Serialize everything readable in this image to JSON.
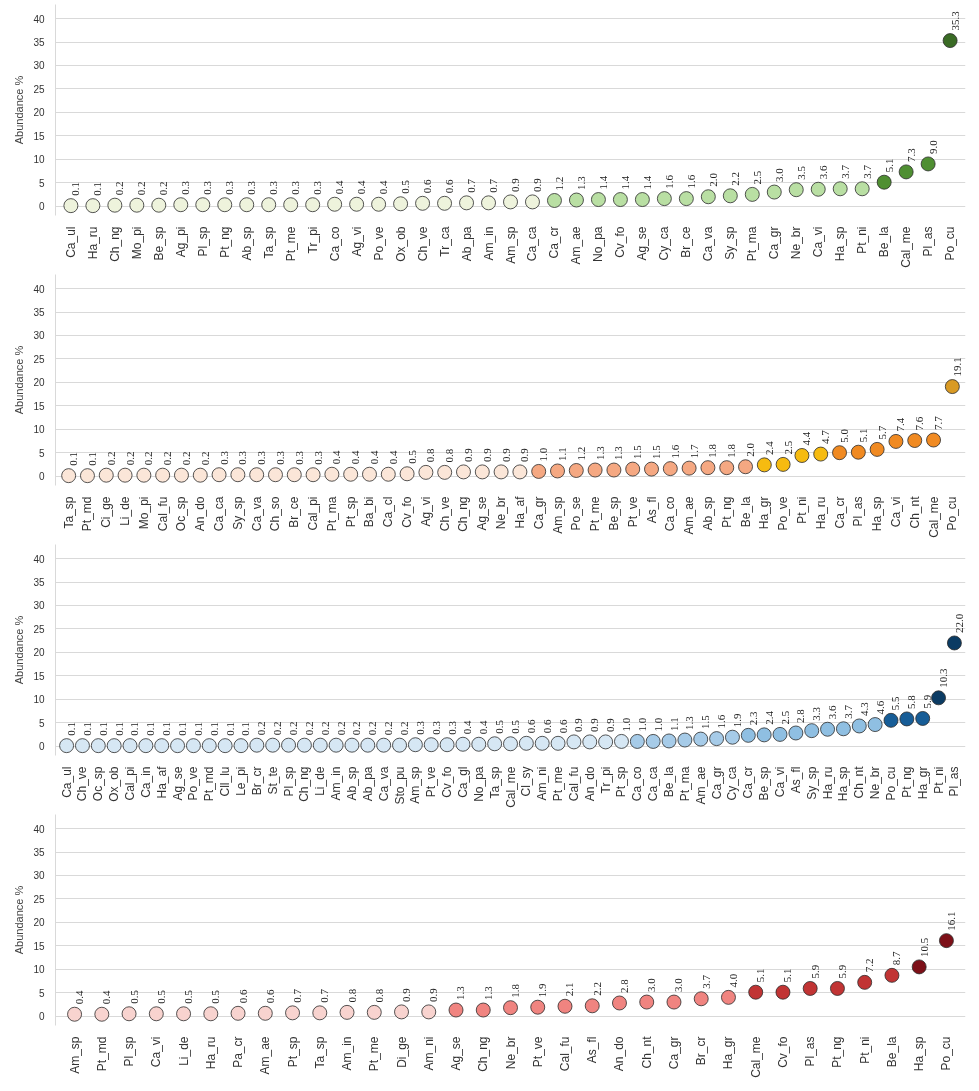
{
  "chart_data": [
    {
      "type": "scatter",
      "ylabel": "Abundance %",
      "ylim": [
        -2,
        43
      ],
      "yticks": [
        0,
        5,
        10,
        15,
        20,
        25,
        30,
        35,
        40
      ],
      "grid": "y",
      "marker": "circle",
      "categories": [
        "Ca_ul",
        "Ha_ru",
        "Ch_ng",
        "Mo_pi",
        "Be_sp",
        "Ag_pi",
        "Pl_sp",
        "Pt_ng",
        "Ab_sp",
        "Ta_sp",
        "Pt_me",
        "Tr_pi",
        "Ca_co",
        "Ag_vi",
        "Po_ve",
        "Ox_ob",
        "Ch_ve",
        "Tr_ca",
        "Ab_pa",
        "Am_in",
        "Am_sp",
        "Ca_ca",
        "Ca_cr",
        "Am_ae",
        "No_pa",
        "Cv_fo",
        "Ag_se",
        "Cy_ca",
        "Br_ce",
        "Ca_va",
        "Sy_sp",
        "Pt_ma",
        "Ca_gr",
        "Ne_br",
        "Ca_vi",
        "Ha_sp",
        "Pt_ni",
        "Be_la",
        "Cal_me",
        "Pl_as",
        "Po_cu"
      ],
      "values": [
        0.1,
        0.1,
        0.2,
        0.2,
        0.2,
        0.3,
        0.3,
        0.3,
        0.3,
        0.3,
        0.3,
        0.3,
        0.4,
        0.4,
        0.4,
        0.5,
        0.6,
        0.6,
        0.7,
        0.7,
        0.9,
        0.9,
        1.2,
        1.3,
        1.4,
        1.4,
        1.4,
        1.6,
        1.6,
        2.0,
        2.2,
        2.5,
        3.0,
        3.5,
        3.6,
        3.7,
        3.7,
        5.1,
        7.3,
        9.0,
        35.3
      ],
      "value_labels": [
        "0.1",
        "0.1",
        "0.2",
        "0.2",
        "0.2",
        "0.3",
        "0.3",
        "0.3",
        "0.3",
        "0.3",
        "0.3",
        "0.3",
        "0.4",
        "0.4",
        "0.4",
        "0.5",
        "0.6",
        "0.6",
        "0.7",
        "0.7",
        "0.9",
        "0.9",
        "1.2",
        "1.3",
        "1.4",
        "1.4",
        "1.4",
        "1.6",
        "1.6",
        "2.0",
        "2.2",
        "2.5",
        "3.0",
        "3.5",
        "3.6",
        "3.7",
        "3.7",
        "5.1",
        "7.3",
        "9.0",
        "35.3"
      ],
      "colors": [
        "#eef3dc",
        "#eef3dc",
        "#eef3dc",
        "#eef3dc",
        "#eef3dc",
        "#eef3dc",
        "#eef3dc",
        "#eef3dc",
        "#eef3dc",
        "#eef3dc",
        "#eef3dc",
        "#eef3dc",
        "#eef3dc",
        "#eef3dc",
        "#eef3dc",
        "#eef3dc",
        "#eef3dc",
        "#eef3dc",
        "#eef3dc",
        "#eef3dc",
        "#eef3dc",
        "#eef3dc",
        "#b9dfa3",
        "#b9dfa3",
        "#b9dfa3",
        "#b9dfa3",
        "#b9dfa3",
        "#b9dfa3",
        "#b9dfa3",
        "#b9dfa3",
        "#b9dfa3",
        "#b9dfa3",
        "#b9dfa3",
        "#b9dfa3",
        "#b9dfa3",
        "#b9dfa3",
        "#b9dfa3",
        "#4f8f32",
        "#4f8f32",
        "#4f8f32",
        "#3a6b25"
      ]
    },
    {
      "type": "scatter",
      "ylabel": "Abundance %",
      "ylim": [
        -2,
        43
      ],
      "yticks": [
        0,
        5,
        10,
        15,
        20,
        25,
        30,
        35,
        40
      ],
      "grid": "y",
      "marker": "circle",
      "categories": [
        "Ta_sp",
        "Pt_md",
        "Ci_ge",
        "Li_de",
        "Mo_pi",
        "Cal_fu",
        "Oc_sp",
        "An_do",
        "Ca_ca",
        "Sy_sp",
        "Ca_va",
        "Ch_so",
        "Br_ce",
        "Cal_pi",
        "Pt_ma",
        "Pt_sp",
        "Ba_bi",
        "Ca_cl",
        "Cv_fo",
        "Ag_vi",
        "Ch_ve",
        "Ch_ng",
        "Ag_se",
        "Ne_br",
        "Ha_af",
        "Ca_gr",
        "Am_sp",
        "Po_se",
        "Pt_me",
        "Be_sp",
        "Pt_ve",
        "As_fl",
        "Ca_co",
        "Am_ae",
        "Ab_sp",
        "Pt_ng",
        "Be_la",
        "Ha_gr",
        "Po_ve",
        "Pt_ni",
        "Ha_ru",
        "Ca_cr",
        "Pl_as",
        "Ha_sp",
        "Ca_vi",
        "Ch_nt",
        "Cal_me",
        "Po_cu"
      ],
      "values": [
        0.1,
        0.1,
        0.2,
        0.2,
        0.2,
        0.2,
        0.2,
        0.2,
        0.3,
        0.3,
        0.3,
        0.3,
        0.3,
        0.3,
        0.4,
        0.4,
        0.4,
        0.4,
        0.5,
        0.8,
        0.8,
        0.9,
        0.9,
        0.9,
        0.9,
        1.0,
        1.1,
        1.2,
        1.3,
        1.3,
        1.5,
        1.5,
        1.6,
        1.7,
        1.8,
        1.8,
        2.0,
        2.4,
        2.5,
        4.4,
        4.7,
        5.0,
        5.1,
        5.7,
        7.4,
        7.6,
        7.7,
        19.1
      ],
      "value_labels": [
        "0.1",
        "0.1",
        "0.2",
        "0.2",
        "0.2",
        "0.2",
        "0.2",
        "0.2",
        "0.3",
        "0.3",
        "0.3",
        "0.3",
        "0.3",
        "0.3",
        "0.4",
        "0.4",
        "0.4",
        "0.4",
        "0.5",
        "0.8",
        "0.8",
        "0.9",
        "0.9",
        "0.9",
        "0.9",
        "1.0",
        "1.1",
        "1.2",
        "1.3",
        "1.3",
        "1.5",
        "1.5",
        "1.6",
        "1.7",
        "1.8",
        "1.8",
        "2.0",
        "2.4",
        "2.5",
        "4.4",
        "4.7",
        "5.0",
        "5.1",
        "5.7",
        "7.4",
        "7.6",
        "7.7",
        "19.1"
      ],
      "colors": [
        "#fbe6d8",
        "#fbe6d8",
        "#fbe6d8",
        "#fbe6d8",
        "#fbe6d8",
        "#fbe6d8",
        "#fbe6d8",
        "#fbe6d8",
        "#fbe6d8",
        "#fbe6d8",
        "#fbe6d8",
        "#fbe6d8",
        "#fbe6d8",
        "#fbe6d8",
        "#fbe6d8",
        "#fbe6d8",
        "#fbe6d8",
        "#fbe6d8",
        "#fbe6d8",
        "#fbe6d8",
        "#fbe6d8",
        "#fbe6d8",
        "#fbe6d8",
        "#fbe6d8",
        "#fbe6d8",
        "#f5a882",
        "#f5a882",
        "#f5a882",
        "#f5a882",
        "#f5a882",
        "#f5a882",
        "#f5a882",
        "#f5a882",
        "#f5a882",
        "#f5a882",
        "#f5a882",
        "#f5a882",
        "#f6bb10",
        "#f6bb10",
        "#f6bb10",
        "#f6bb10",
        "#f08a22",
        "#f08a22",
        "#f08a22",
        "#f08a22",
        "#f08a22",
        "#f08a22",
        "#d99a24"
      ]
    },
    {
      "type": "scatter",
      "ylabel": "Abundance %",
      "ylim": [
        -2,
        43
      ],
      "yticks": [
        0,
        5,
        10,
        15,
        20,
        25,
        30,
        35,
        40
      ],
      "grid": "y",
      "marker": "circle",
      "categories": [
        "Ca_ul",
        "Ch_ve",
        "Oc_sp",
        "Ox_ob",
        "Cal_pi",
        "Ca_in",
        "Ha_af",
        "Ag_se",
        "Po_ve",
        "Pt_md",
        "Cll_lu",
        "Le_pi",
        "Br_cr",
        "St_te",
        "Pl_sp",
        "Ch_ng",
        "Li_de",
        "Am_in",
        "Ab_sp",
        "Ab_pa",
        "Ca_va",
        "Sto_pu",
        "Am_sp",
        "Pt_ve",
        "Cv_fo",
        "Ca_gl",
        "No_pa",
        "Ta_sp",
        "Cal_me",
        "Cl_sy",
        "Am_ni",
        "Pt_me",
        "Cal_fu",
        "An_do",
        "Tr_pi",
        "Pt_sp",
        "Ca_co",
        "Ca_ca",
        "Be_la",
        "Pt_ma",
        "Am_ae",
        "Ca_gr",
        "Cy_ca",
        "Ca_cr",
        "Be_sp",
        "Ca_vi",
        "As_fl",
        "Sy_sp",
        "Ha_ru",
        "Ha_sp",
        "Ch_nt",
        "Ne_br",
        "Po_cu",
        "Pt_ng",
        "Ha_gr",
        "Pt_ni",
        "Pl_as"
      ],
      "values": [
        0.1,
        0.1,
        0.1,
        0.1,
        0.1,
        0.1,
        0.1,
        0.1,
        0.1,
        0.1,
        0.1,
        0.1,
        0.2,
        0.2,
        0.2,
        0.2,
        0.2,
        0.2,
        0.2,
        0.2,
        0.2,
        0.2,
        0.3,
        0.3,
        0.3,
        0.4,
        0.4,
        0.5,
        0.5,
        0.6,
        0.6,
        0.6,
        0.9,
        0.9,
        0.9,
        1.0,
        1.0,
        1.0,
        1.1,
        1.3,
        1.5,
        1.6,
        1.9,
        2.3,
        2.4,
        2.5,
        2.8,
        3.3,
        3.6,
        3.7,
        4.3,
        4.6,
        5.5,
        5.8,
        5.9,
        10.3,
        22.0
      ],
      "value_labels": [
        "0.1",
        "0.1",
        "0.1",
        "0.1",
        "0.1",
        "0.1",
        "0.1",
        "0.1",
        "0.1",
        "0.1",
        "0.1",
        "0.1",
        "0.2",
        "0.2",
        "0.2",
        "0.2",
        "0.2",
        "0.2",
        "0.2",
        "0.2",
        "0.2",
        "0.2",
        "0.3",
        "0.3",
        "0.3",
        "0.4",
        "0.4",
        "0.5",
        "0.5",
        "0.6",
        "0.6",
        "0.6",
        "0.9",
        "0.9",
        "0.9",
        "1.0",
        "1.0",
        "1.0",
        "1.1",
        "1.3",
        "1.5",
        "1.6",
        "1.9",
        "2.3",
        "2.4",
        "2.5",
        "2.8",
        "3.3",
        "3.6",
        "3.7",
        "4.3",
        "4.6",
        "5.5",
        "5.8",
        "5.9",
        "10.3",
        "22.0"
      ],
      "colors": [
        "#d6e7f4",
        "#d6e7f4",
        "#d6e7f4",
        "#d6e7f4",
        "#d6e7f4",
        "#d6e7f4",
        "#d6e7f4",
        "#d6e7f4",
        "#d6e7f4",
        "#d6e7f4",
        "#d6e7f4",
        "#d6e7f4",
        "#d6e7f4",
        "#d6e7f4",
        "#d6e7f4",
        "#d6e7f4",
        "#d6e7f4",
        "#d6e7f4",
        "#d6e7f4",
        "#d6e7f4",
        "#d6e7f4",
        "#d6e7f4",
        "#d6e7f4",
        "#d6e7f4",
        "#d6e7f4",
        "#d6e7f4",
        "#d6e7f4",
        "#d6e7f4",
        "#d6e7f4",
        "#d6e7f4",
        "#d6e7f4",
        "#d6e7f4",
        "#d6e7f4",
        "#d6e7f4",
        "#d6e7f4",
        "#d6e7f4",
        "#a6cbe8",
        "#a6cbe8",
        "#a6cbe8",
        "#a6cbe8",
        "#a6cbe8",
        "#a6cbe8",
        "#a6cbe8",
        "#8fbfe2",
        "#8fbfe2",
        "#8fbfe2",
        "#8fbfe2",
        "#8fbfe2",
        "#8fbfe2",
        "#8fbfe2",
        "#8fbfe2",
        "#8fbfe2",
        "#175d97",
        "#175d97",
        "#175d97",
        "#0b3b63",
        "#0b3b63"
      ]
    },
    {
      "type": "scatter",
      "ylabel": "Abundance %",
      "ylim": [
        -2,
        43
      ],
      "yticks": [
        0,
        5,
        10,
        15,
        20,
        25,
        30,
        35,
        40
      ],
      "grid": "y",
      "marker": "circle",
      "categories": [
        "Am_sp",
        "Pt_md",
        "Pl_sp",
        "Ca_vi",
        "Li_de",
        "Ha_ru",
        "Pa_cr",
        "Am_ae",
        "Pt_sp",
        "Ta_sp",
        "Am_in",
        "Pt_me",
        "Di_ge",
        "Am_ni",
        "Ag_se",
        "Ch_ng",
        "Ne_br",
        "Pt_ve",
        "Cal_fu",
        "As_fl",
        "An_do",
        "Ch_nt",
        "Ca_gr",
        "Br_cr",
        "Ha_gr",
        "Cal_me",
        "Cv_fo",
        "Pl_as",
        "Pt_ng",
        "Pt_ni",
        "Be_la",
        "Ha_sp",
        "Po_cu"
      ],
      "values": [
        0.4,
        0.4,
        0.5,
        0.5,
        0.5,
        0.5,
        0.6,
        0.6,
        0.7,
        0.7,
        0.8,
        0.8,
        0.9,
        0.9,
        1.3,
        1.3,
        1.8,
        1.9,
        2.1,
        2.2,
        2.8,
        3.0,
        3.0,
        3.7,
        4.0,
        5.1,
        5.1,
        5.9,
        5.9,
        7.2,
        8.7,
        10.5,
        16.1
      ],
      "value_labels": [
        "0.4",
        "0.4",
        "0.5",
        "0.5",
        "0.5",
        "0.5",
        "0.6",
        "0.6",
        "0.7",
        "0.7",
        "0.8",
        "0.8",
        "0.9",
        "0.9",
        "1.3",
        "1.3",
        "1.8",
        "1.9",
        "2.1",
        "2.2",
        "2.8",
        "3.0",
        "3.0",
        "3.7",
        "4.0",
        "5.1",
        "5.1",
        "5.9",
        "5.9",
        "7.2",
        "8.7",
        "10.5",
        "16.1"
      ],
      "colors": [
        "#f8d3cf",
        "#f8d3cf",
        "#f8d3cf",
        "#f8d3cf",
        "#f8d3cf",
        "#f8d3cf",
        "#f8d3cf",
        "#f8d3cf",
        "#f8d3cf",
        "#f8d3cf",
        "#f8d3cf",
        "#f8d3cf",
        "#f8d3cf",
        "#f8d3cf",
        "#f08480",
        "#f08480",
        "#f08480",
        "#f08480",
        "#f08480",
        "#f08480",
        "#f08480",
        "#f08480",
        "#f08480",
        "#f08480",
        "#f08480",
        "#c13434",
        "#c13434",
        "#c13434",
        "#c13434",
        "#c13434",
        "#c13434",
        "#7d1018",
        "#7d1018"
      ]
    }
  ]
}
